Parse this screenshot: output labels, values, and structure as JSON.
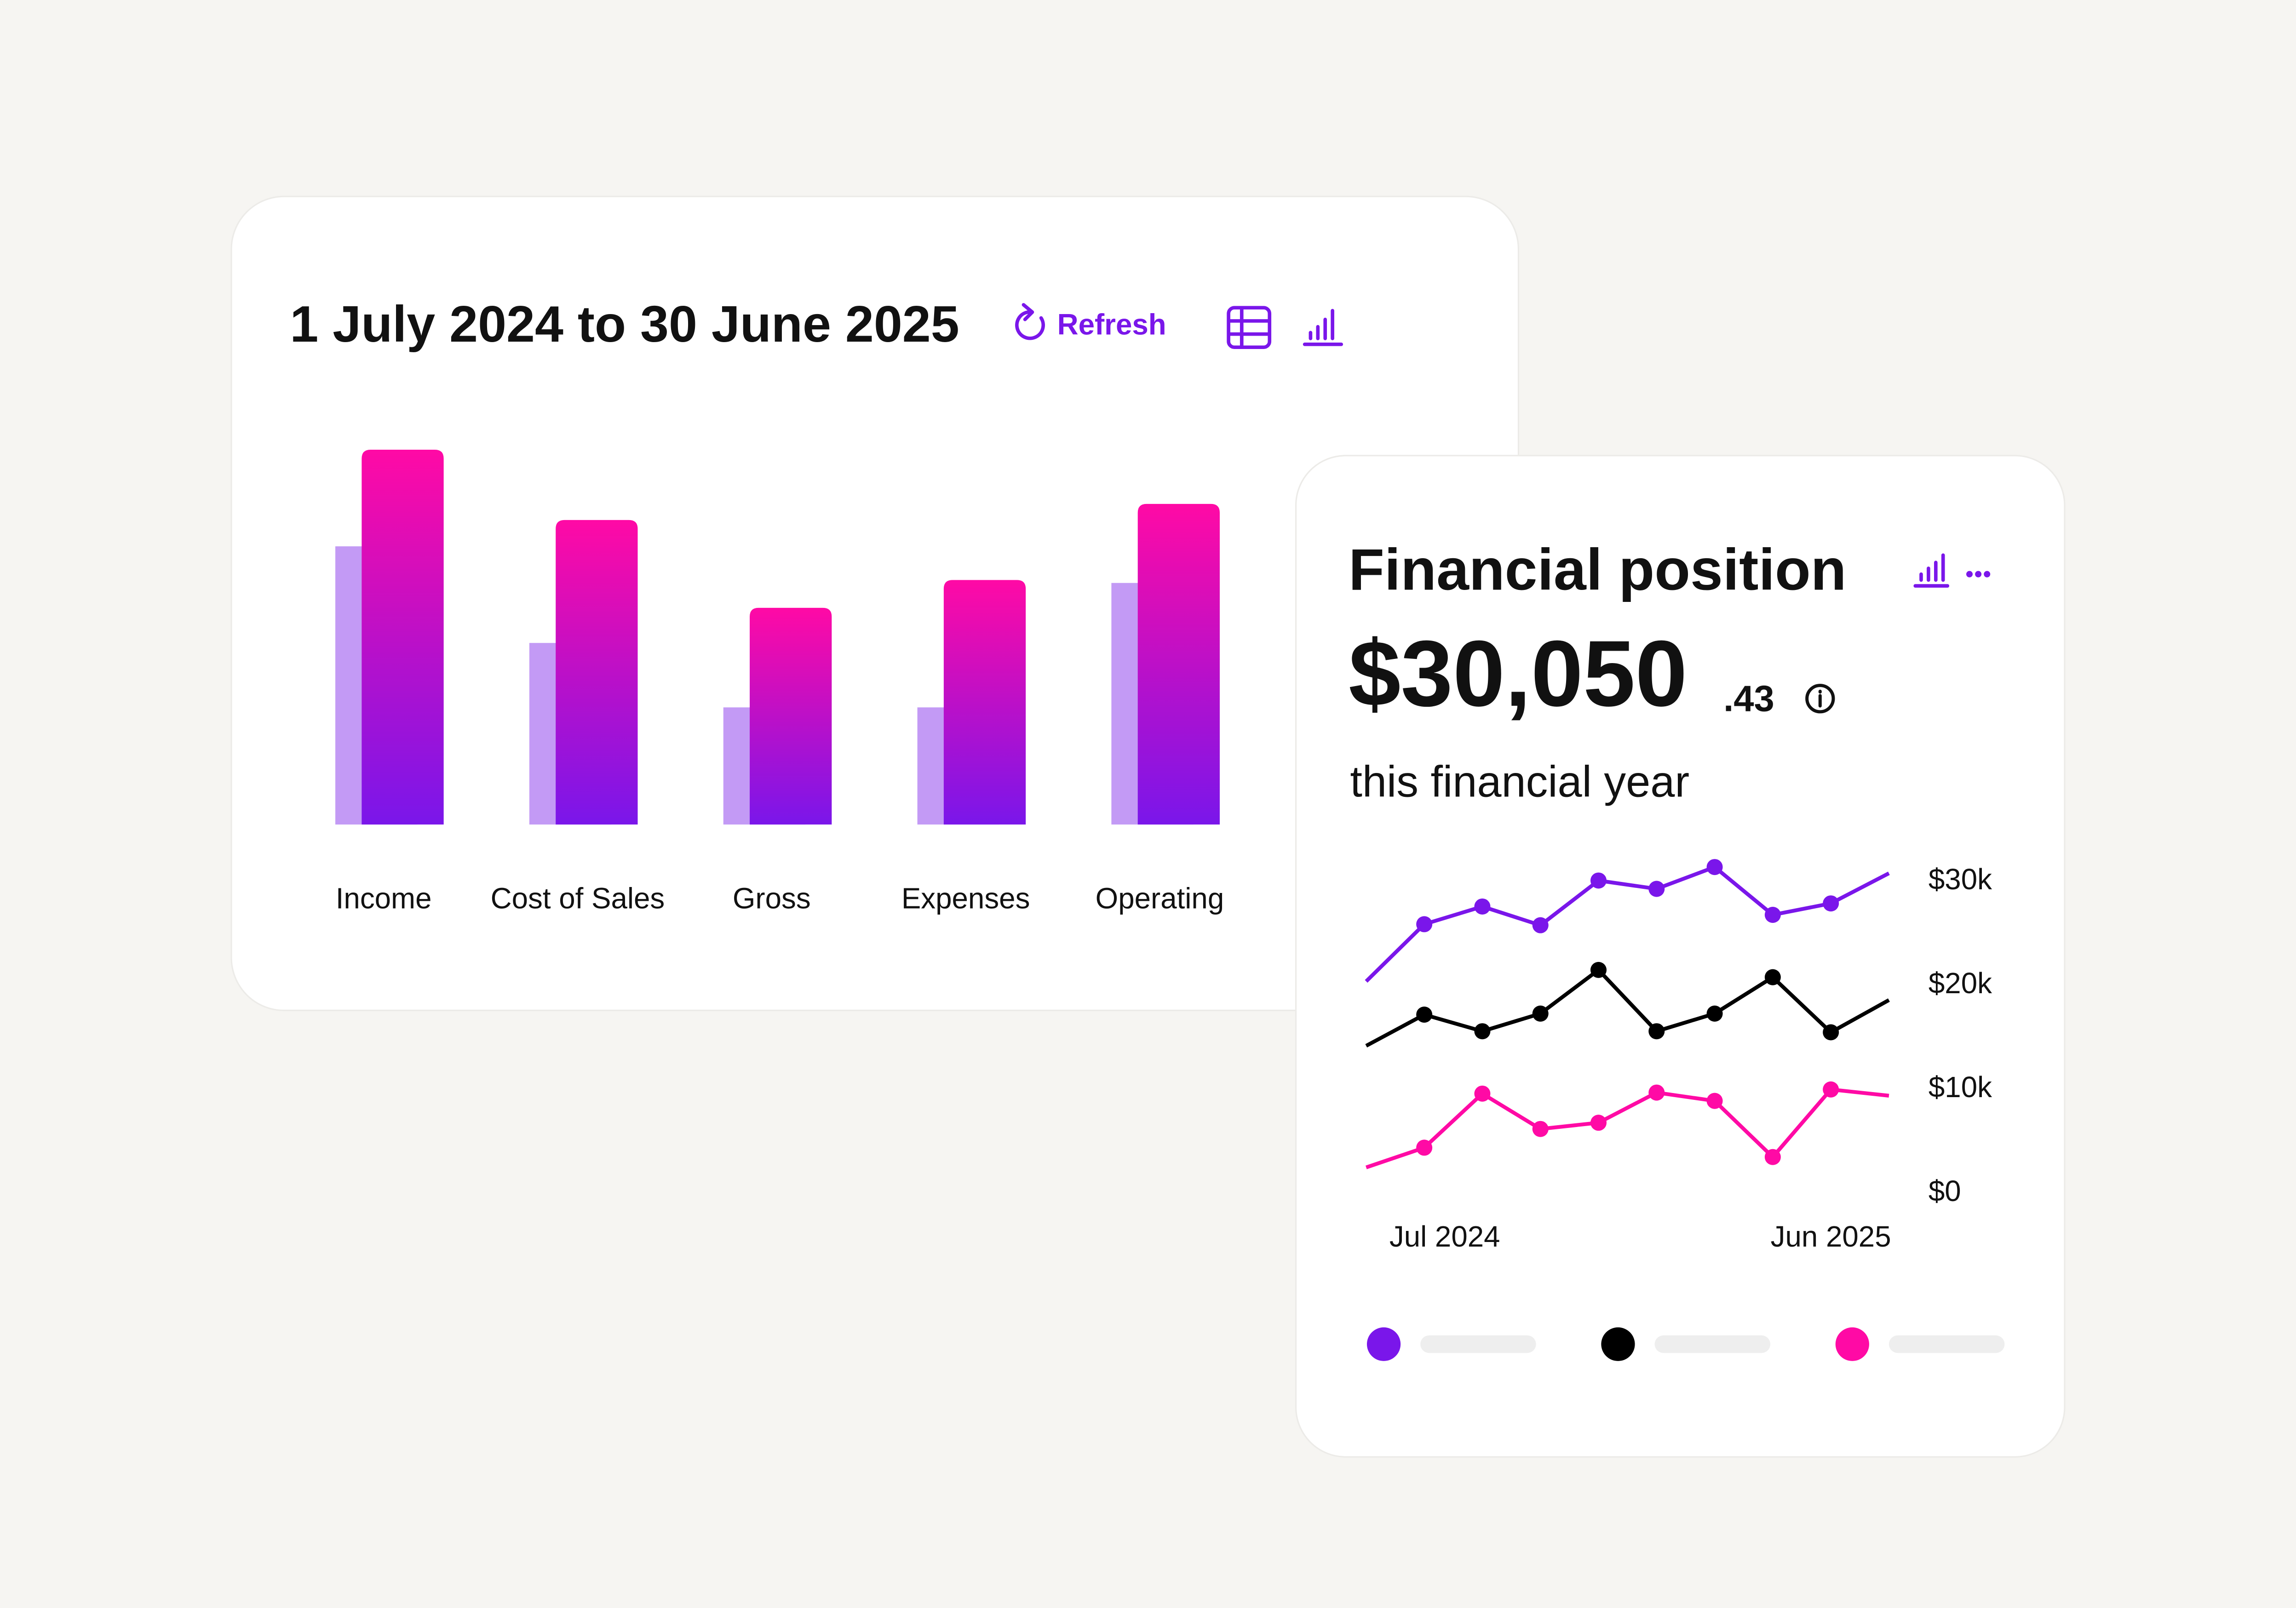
{
  "chart_data": [
    {
      "type": "bar",
      "title": "1 July 2024 to 30 June 2025",
      "refresh": "Refresh",
      "categories": [
        "Income",
        "Cost of Sales",
        "Gross",
        "Expenses",
        "Operating"
      ],
      "series": [
        {
          "color": "#c39af5",
          "values": [
            190,
            124,
            80,
            80,
            165
          ]
        },
        {
          "color": "#ff0aa5",
          "color_end": "#7a16ea",
          "values": [
            256,
            208,
            148,
            167,
            219
          ]
        }
      ],
      "ylim": [
        0,
        260
      ]
    },
    {
      "type": "line",
      "title": "Financial position",
      "amount": "$30,050",
      "cents": ".43",
      "caption": "this financial year",
      "categories": [
        null,
        "Jul 2024",
        null,
        null,
        null,
        null,
        null,
        null,
        "Jun 2025",
        null
      ],
      "series": [
        {
          "color": "#7a16ea",
          "values": [
            20400,
            25900,
            27600,
            25800,
            30100,
            29300,
            31400,
            26800,
            27900,
            30800
          ]
        },
        {
          "color": "#000000",
          "values": [
            14200,
            17200,
            15600,
            17300,
            21500,
            15600,
            17300,
            20800,
            15500,
            18600
          ]
        },
        {
          "color": "#ff0aa5",
          "values": [
            2500,
            4400,
            9600,
            6200,
            6800,
            9700,
            8900,
            3500,
            10000,
            9400
          ]
        }
      ],
      "ylim": [
        0,
        32000
      ],
      "yticks": [
        {
          "value": 0,
          "label": "$0"
        },
        {
          "value": 10000,
          "label": "$10k"
        },
        {
          "value": 20000,
          "label": "$20k"
        },
        {
          "value": 30000,
          "label": "$30k"
        }
      ],
      "legend": "bottom"
    }
  ]
}
